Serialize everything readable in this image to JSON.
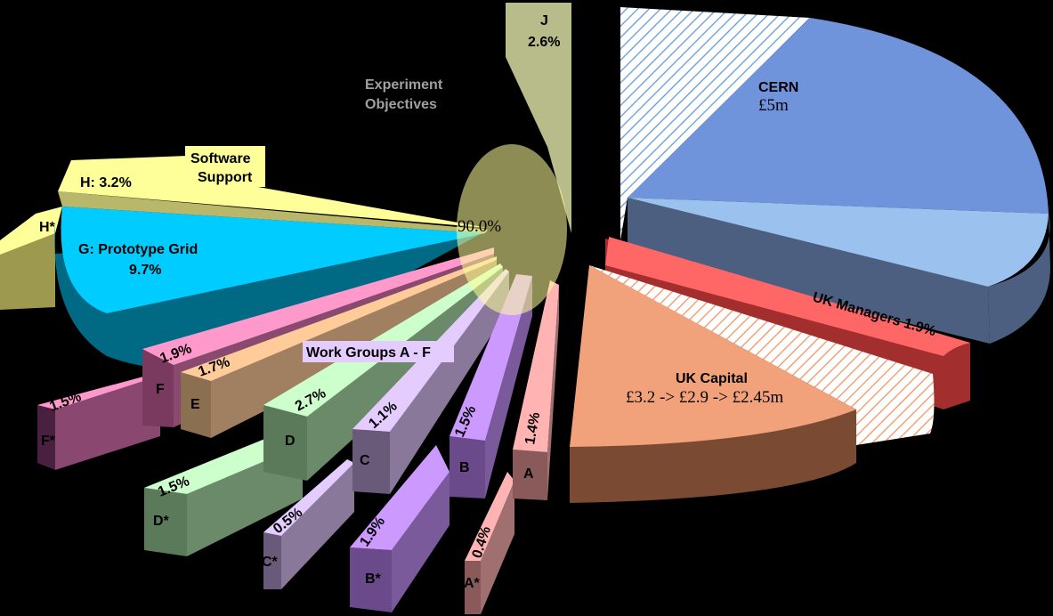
{
  "chart_data": {
    "type": "pie",
    "style": "exploded-3d",
    "annotations": {
      "objectives": [
        "Experiment",
        "Objectives"
      ],
      "center_pct": "90.0%",
      "software": [
        "Software",
        "Support"
      ],
      "workgroups": "Work Groups A - F"
    },
    "slices": [
      {
        "id": "cern",
        "label": "CERN",
        "value_text": "£5m",
        "color": "#7094dc"
      },
      {
        "id": "ukm",
        "label": "UK Managers 1.9%",
        "value": 1.9,
        "color": "#ff6666"
      },
      {
        "id": "ukc",
        "label": "UK Capital",
        "value_text": "£3.2 -> £2.9 -> £2.45m",
        "color": "#f2a27a"
      },
      {
        "id": "J",
        "label": "J",
        "pct": "2.6%",
        "value": 2.6,
        "color": "#b8bb8a"
      },
      {
        "id": "H",
        "label": "H: 3.2%",
        "value": 3.2,
        "color": "#ffff99"
      },
      {
        "id": "Hs",
        "label": "H*",
        "color": "#ffff99"
      },
      {
        "id": "G",
        "label": "G: Prototype Grid",
        "pct": "9.7%",
        "value": 9.7,
        "color": "#00ccff"
      },
      {
        "id": "F",
        "label": "F",
        "pct": "1.9%",
        "value": 1.9,
        "color": "#ff99cc"
      },
      {
        "id": "Fs",
        "label": "F*",
        "pct": "1.5%",
        "value": 1.5,
        "color": "#ff99cc"
      },
      {
        "id": "E",
        "label": "E",
        "pct": "1.7%",
        "value": 1.7,
        "color": "#ffcc99"
      },
      {
        "id": "D",
        "label": "D",
        "pct": "2.7%",
        "value": 2.7,
        "color": "#ccffcc"
      },
      {
        "id": "Ds",
        "label": "D*",
        "pct": "1.5%",
        "value": 1.5,
        "color": "#ccffcc"
      },
      {
        "id": "C",
        "label": "C",
        "pct": "1.1%",
        "value": 1.1,
        "color": "#e5ccff"
      },
      {
        "id": "Cs",
        "label": "C*",
        "pct": "0.5%",
        "value": 0.5,
        "color": "#e5ccff"
      },
      {
        "id": "B",
        "label": "B",
        "pct": "1.5%",
        "value": 1.5,
        "color": "#cc99ff"
      },
      {
        "id": "Bs",
        "label": "B*",
        "pct": "1.9%",
        "value": 1.9,
        "color": "#cc99ff"
      },
      {
        "id": "A",
        "label": "A",
        "pct": "1.4%",
        "value": 1.4,
        "color": "#ffb3b3"
      },
      {
        "id": "As",
        "label": "A*",
        "pct": "0.4%",
        "value": 0.4,
        "color": "#ffb3b3"
      }
    ]
  }
}
